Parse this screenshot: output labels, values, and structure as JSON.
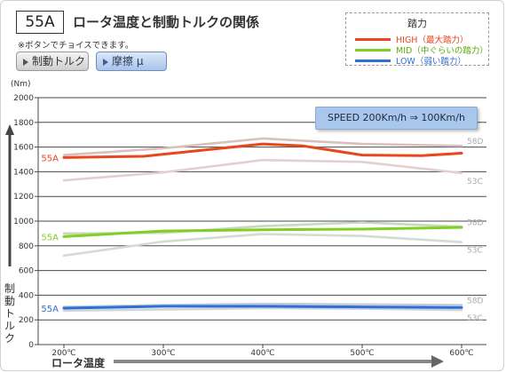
{
  "header": {
    "badge": "55A",
    "title": "ロータ温度と制動トルクの関係",
    "note": "※ボタンでチョイスできます。",
    "buttons": {
      "torque_label": "制動トルク",
      "friction_label": "摩擦 μ"
    }
  },
  "legend": {
    "title": "踏力",
    "items": [
      {
        "label": "HIGH（最大踏力）",
        "color": "#e8461c"
      },
      {
        "label": "MID（中ぐらいの踏力）",
        "color": "#7fd021"
      },
      {
        "label": "LOW（弱い踏力）",
        "color": "#2f6fd6"
      }
    ]
  },
  "speed_box": "SPEED 200Km/h ⇒ 100Km/h",
  "axis": {
    "y_unit": "(Nm)",
    "y_title": "制動トルク",
    "x_title": "ロータ温度"
  },
  "chart_data": {
    "type": "line",
    "x": [
      200,
      300,
      400,
      500,
      600
    ],
    "x_tick_labels": [
      "200℃",
      "300℃",
      "400℃",
      "500℃",
      "600℃"
    ],
    "y_ticks": [
      0,
      200,
      400,
      600,
      800,
      1000,
      1200,
      1400,
      1600,
      1800,
      2000
    ],
    "ylim": [
      0,
      2000
    ],
    "xlim": [
      200,
      600
    ],
    "grid": true,
    "series": [
      {
        "name": "55A",
        "group": "HIGH",
        "color": "#e8461c",
        "x": [
          200,
          280,
          400,
          440,
          500,
          560,
          600
        ],
        "values": [
          1515,
          1525,
          1625,
          1610,
          1535,
          1530,
          1550
        ]
      },
      {
        "name": "58D",
        "group": "HIGH",
        "color": "#d9c0bc",
        "x": [
          200,
          300,
          400,
          500,
          600
        ],
        "values": [
          1535,
          1590,
          1670,
          1625,
          1610
        ]
      },
      {
        "name": "53C",
        "group": "HIGH",
        "color": "#e3cfcf",
        "x": [
          200,
          300,
          400,
          500,
          600
        ],
        "values": [
          1330,
          1395,
          1495,
          1480,
          1390
        ]
      },
      {
        "name": "55A",
        "group": "MID",
        "color": "#7fd021",
        "x": [
          200,
          300,
          400,
          500,
          600
        ],
        "values": [
          875,
          920,
          930,
          935,
          950
        ]
      },
      {
        "name": "58D",
        "group": "MID",
        "color": "#c8d8c0",
        "x": [
          200,
          300,
          400,
          500,
          600
        ],
        "values": [
          900,
          905,
          960,
          990,
          955
        ]
      },
      {
        "name": "53C",
        "group": "MID",
        "color": "#d3dcd0",
        "x": [
          200,
          300,
          400,
          500,
          600
        ],
        "values": [
          720,
          835,
          895,
          880,
          830
        ]
      },
      {
        "name": "55A",
        "group": "LOW",
        "color": "#2f6fd6",
        "x": [
          200,
          300,
          400,
          500,
          600
        ],
        "values": [
          295,
          310,
          310,
          305,
          300
        ]
      },
      {
        "name": "58D",
        "group": "LOW",
        "color": "#c4ccd8",
        "x": [
          200,
          300,
          400,
          500,
          600
        ],
        "values": [
          305,
          320,
          330,
          325,
          320
        ]
      },
      {
        "name": "53C",
        "group": "LOW",
        "color": "#cfd4dc",
        "x": [
          200,
          300,
          400,
          500,
          600
        ],
        "values": [
          275,
          285,
          295,
          290,
          280
        ]
      }
    ]
  }
}
